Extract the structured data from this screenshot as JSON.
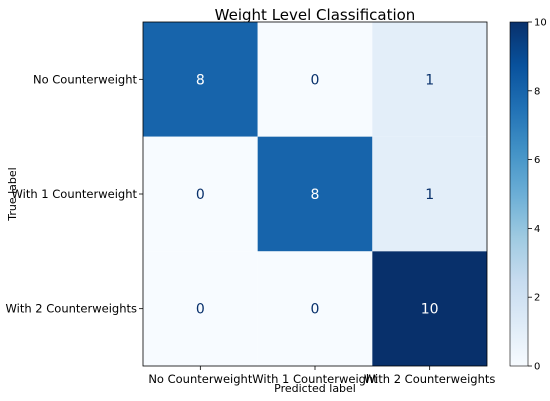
{
  "chart_data": {
    "type": "heatmap",
    "title": "Weight Level Classification",
    "xlabel": "Predicted label",
    "ylabel": "True label",
    "x_categories": [
      "No Counterweight",
      "With 1 Counterweight",
      "With 2 Counterweights"
    ],
    "y_categories": [
      "No Counterweight",
      "With 1 Counterweight",
      "With 2 Counterweights"
    ],
    "matrix": [
      [
        8,
        0,
        1
      ],
      [
        0,
        8,
        1
      ],
      [
        0,
        0,
        10
      ]
    ],
    "colorbar": {
      "min": 0,
      "max": 10,
      "ticks": [
        0,
        2,
        4,
        6,
        8,
        10
      ],
      "colormap": "Blues"
    }
  }
}
